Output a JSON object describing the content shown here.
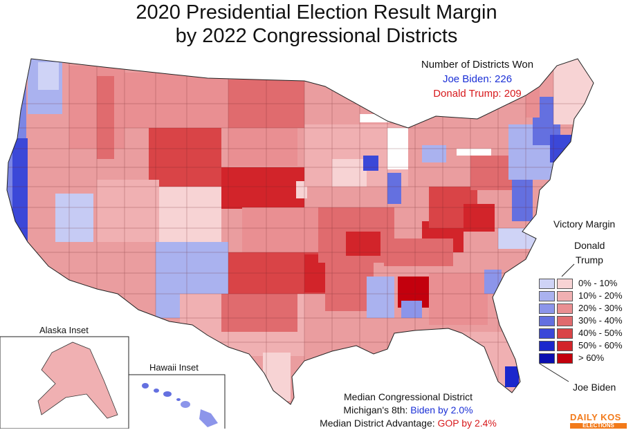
{
  "title_line1": "2020 Presidential Election Result Margin",
  "title_line2": "by 2022 Congressional Districts",
  "districts_won": {
    "heading": "Number of Districts Won",
    "biden": "Joe Biden: 226",
    "trump": "Donald Trump: 209"
  },
  "legend": {
    "title": "Victory Margin",
    "trump_label_1": "Donald",
    "trump_label_2": "Trump",
    "biden_label": "Joe Biden",
    "rows": [
      {
        "label": "0% - 10%",
        "blue": "#cfd3f6",
        "red": "#f7d3d4"
      },
      {
        "label": "10% - 20%",
        "blue": "#aab2ef",
        "red": "#f0b0b2"
      },
      {
        "label": "20% - 30%",
        "blue": "#8c95ea",
        "red": "#e98f92"
      },
      {
        "label": "30% - 40%",
        "blue": "#6470e0",
        "red": "#e06b6e"
      },
      {
        "label": "40% - 50%",
        "blue": "#3b48d8",
        "red": "#d94447"
      },
      {
        "label": "50% - 60%",
        "blue": "#1b27cc",
        "red": "#d2242a"
      },
      {
        "label": "> 60%",
        "blue": "#0a0fb0",
        "red": "#c3000d"
      }
    ]
  },
  "insets": {
    "alaska": "Alaska Inset",
    "hawaii": "Hawaii Inset"
  },
  "median": {
    "line1": "Median Congressional District",
    "line2_prefix": "Michigan's 8th: ",
    "line2_value": "Biden by 2.0%",
    "line3_prefix": "Median District Advantage: ",
    "line3_value": "GOP by 2.4%"
  },
  "logo": {
    "line1": "DAILY KOS",
    "line2": "ELECTIONS"
  }
}
